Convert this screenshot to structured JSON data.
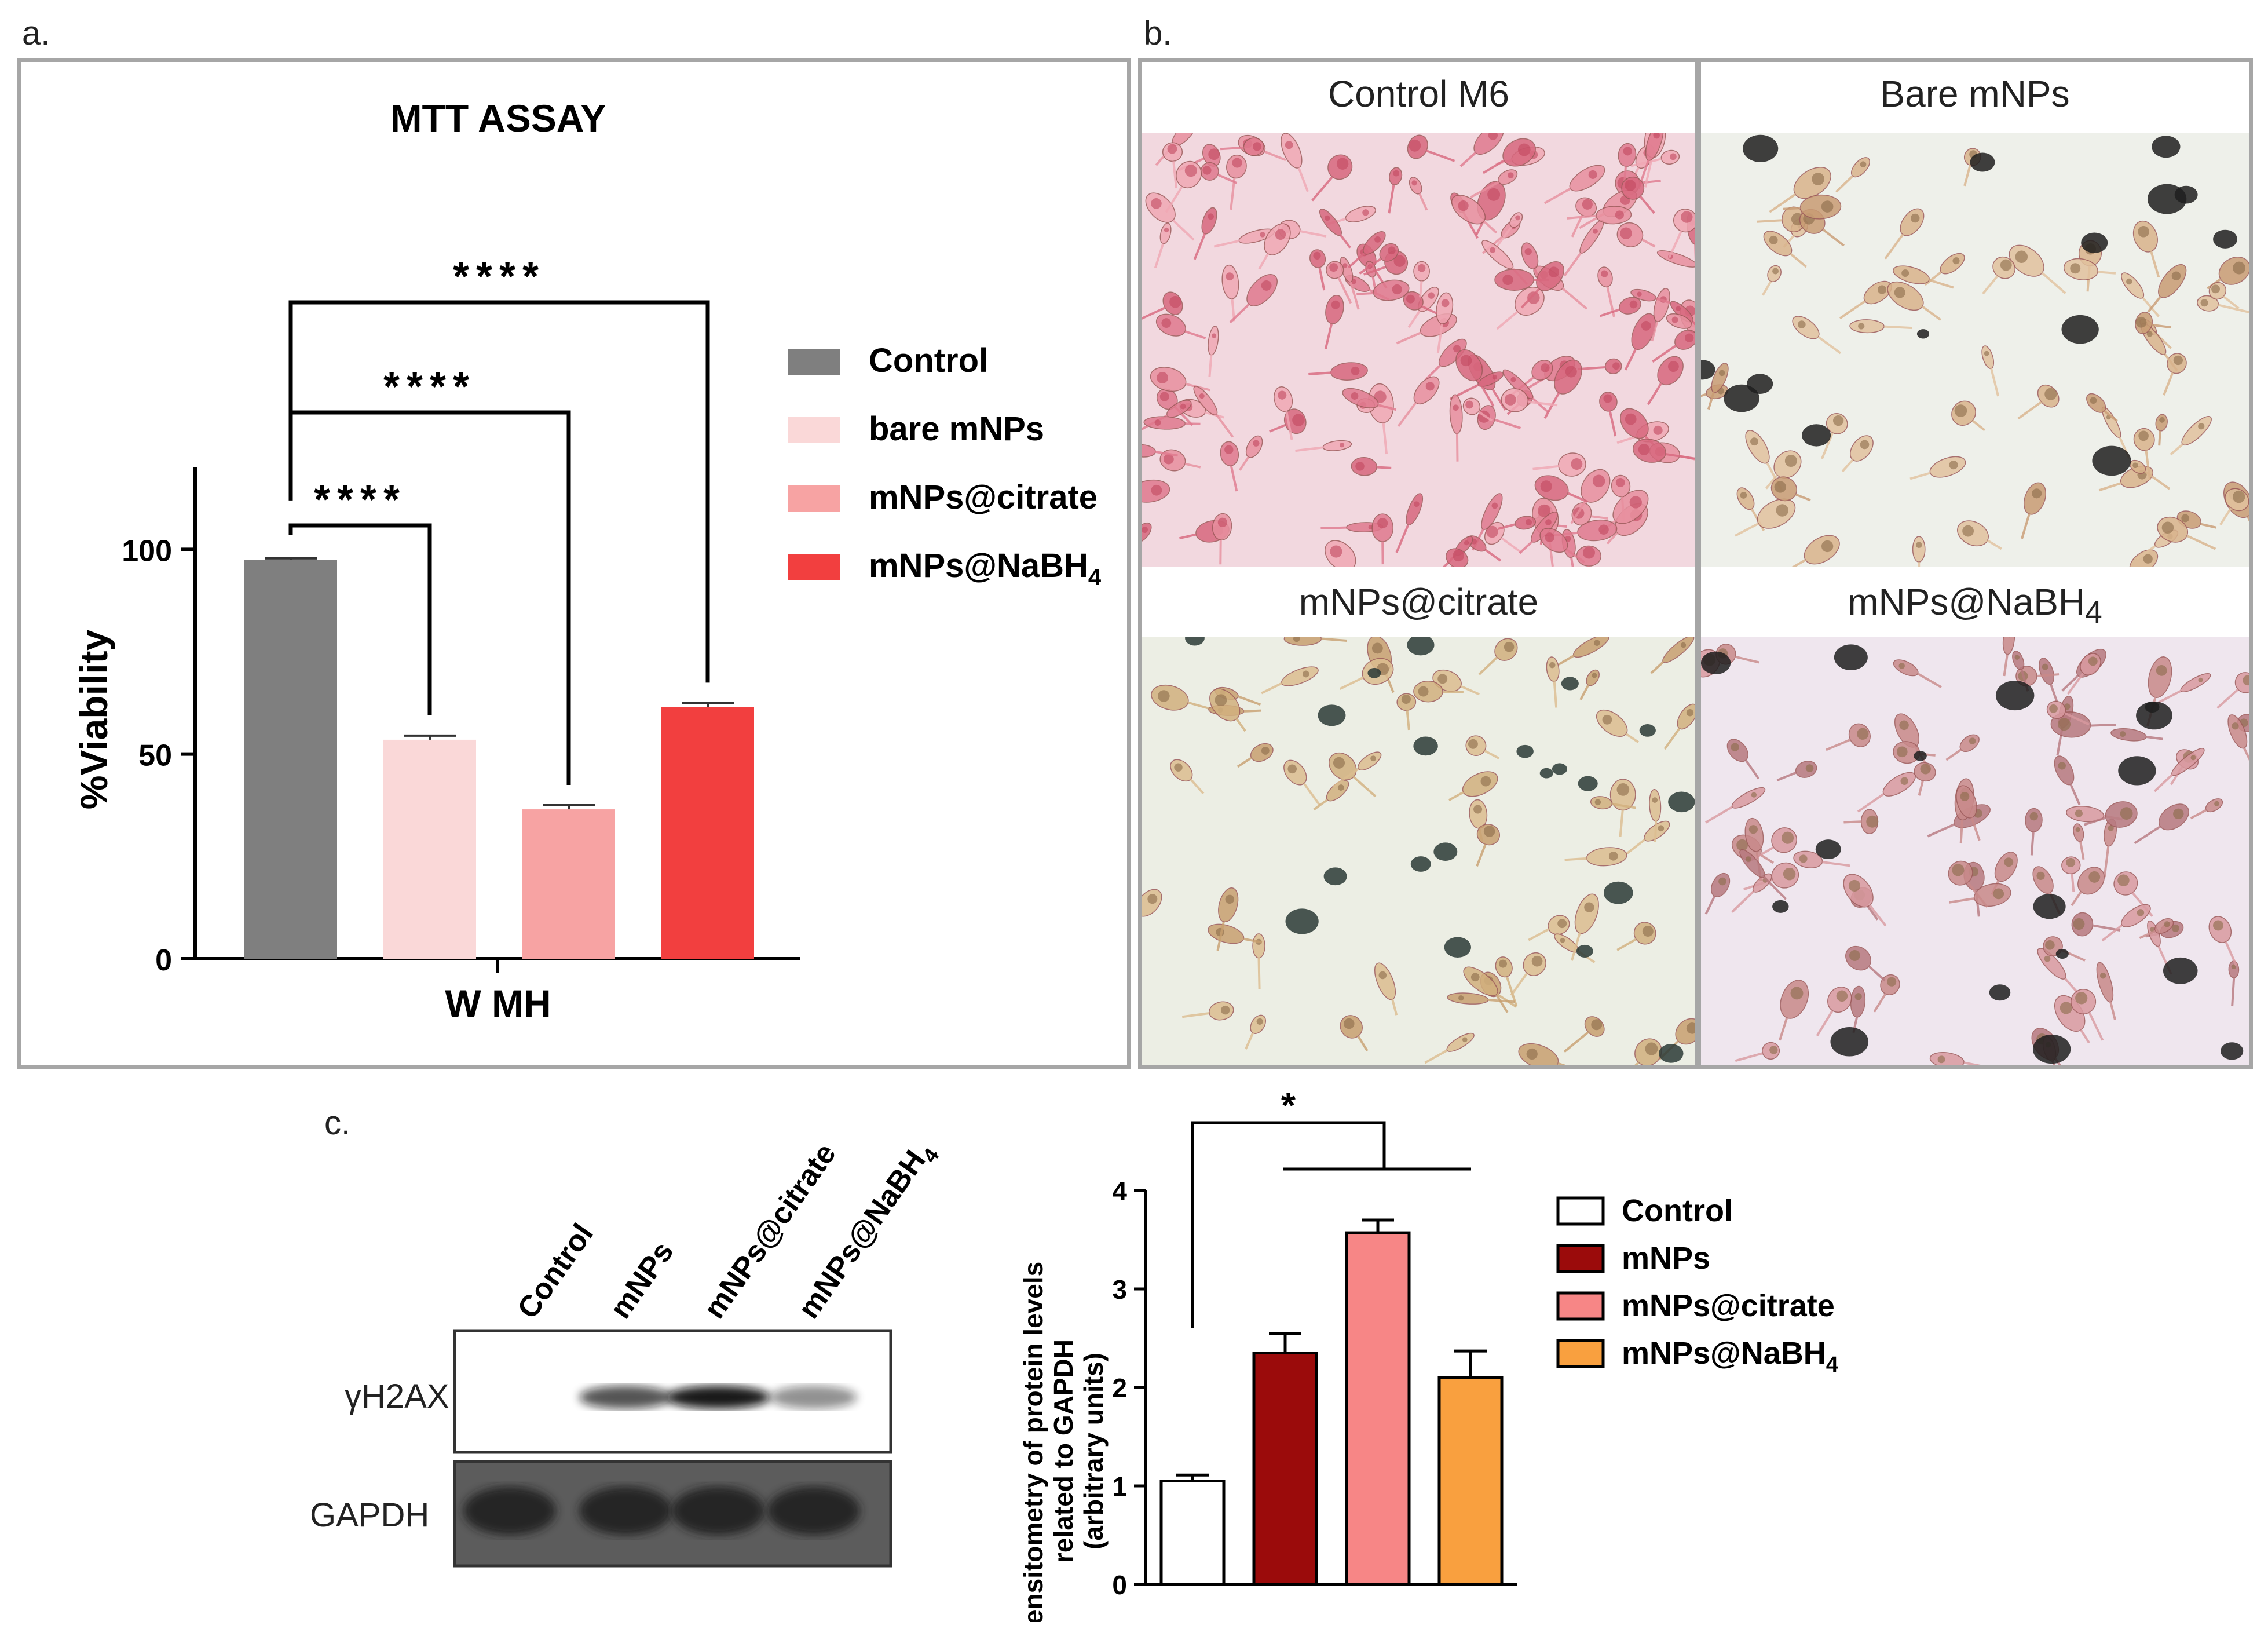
{
  "panel_a": {
    "letter": "a.",
    "chart_data": {
      "type": "bar",
      "title": "MTT ASSAY",
      "xlabel": "W MH",
      "ylabel": "%Viability",
      "ylim": [
        0,
        120
      ],
      "yticks": [
        "0",
        "50",
        "100"
      ],
      "series": [
        {
          "name": "Control",
          "value": 97.5,
          "error": 0.3,
          "color": "#7f7f7f"
        },
        {
          "name": "bare mNPs",
          "value": 53.5,
          "error": 1.0,
          "color": "#fad8d8"
        },
        {
          "name": "mNPs@citrate",
          "value": 36.5,
          "error": 1.0,
          "color": "#f7a3a3"
        },
        {
          "name": "mNPs@NaBH",
          "name_sub": "4",
          "value": 61.5,
          "error": 1.0,
          "color": "#f23f3f"
        }
      ],
      "significance": [
        "****",
        "****",
        "****"
      ],
      "legend_position": "right"
    }
  },
  "panel_b": {
    "letter": "b.",
    "images": [
      {
        "label": "Control M6",
        "sub": "",
        "tint": "#f2d8df"
      },
      {
        "label": "Bare mNPs",
        "sub": "",
        "tint": "#eef0ea"
      },
      {
        "label": "mNPs@citrate",
        "sub": "",
        "tint": "#eceee4"
      },
      {
        "label": "mNPs@NaBH",
        "sub": "4",
        "tint": "#efe6ee"
      }
    ]
  },
  "panel_c": {
    "letter": "c.",
    "blot": {
      "lanes": [
        "Control",
        "mNPs",
        "mNPs@citrate",
        "mNPs@NaBH"
      ],
      "lane_subs": [
        "",
        "",
        "",
        "4"
      ],
      "rows": [
        "γH2AX",
        "GAPDH"
      ]
    },
    "chart_data": {
      "type": "bar",
      "ylabel_lines": [
        "densitometry of protein levels",
        "related to GAPDH",
        "(arbitrary units)"
      ],
      "ylim": [
        0,
        4
      ],
      "yticks": [
        "0",
        "1",
        "2",
        "3",
        "4"
      ],
      "series": [
        {
          "name": "Control",
          "value": 1.05,
          "error": 0.06,
          "color": "#ffffff"
        },
        {
          "name": "mNPs",
          "value": 2.35,
          "error": 0.2,
          "color": "#9b0b0b"
        },
        {
          "name": "mNPs@citrate",
          "value": 3.57,
          "error": 0.13,
          "color": "#f78686"
        },
        {
          "name": "mNPs@NaBH",
          "name_sub": "4",
          "value": 2.1,
          "error": 0.27,
          "color": "#f9a03f"
        }
      ],
      "significance": [
        "*"
      ],
      "legend_position": "right"
    }
  }
}
